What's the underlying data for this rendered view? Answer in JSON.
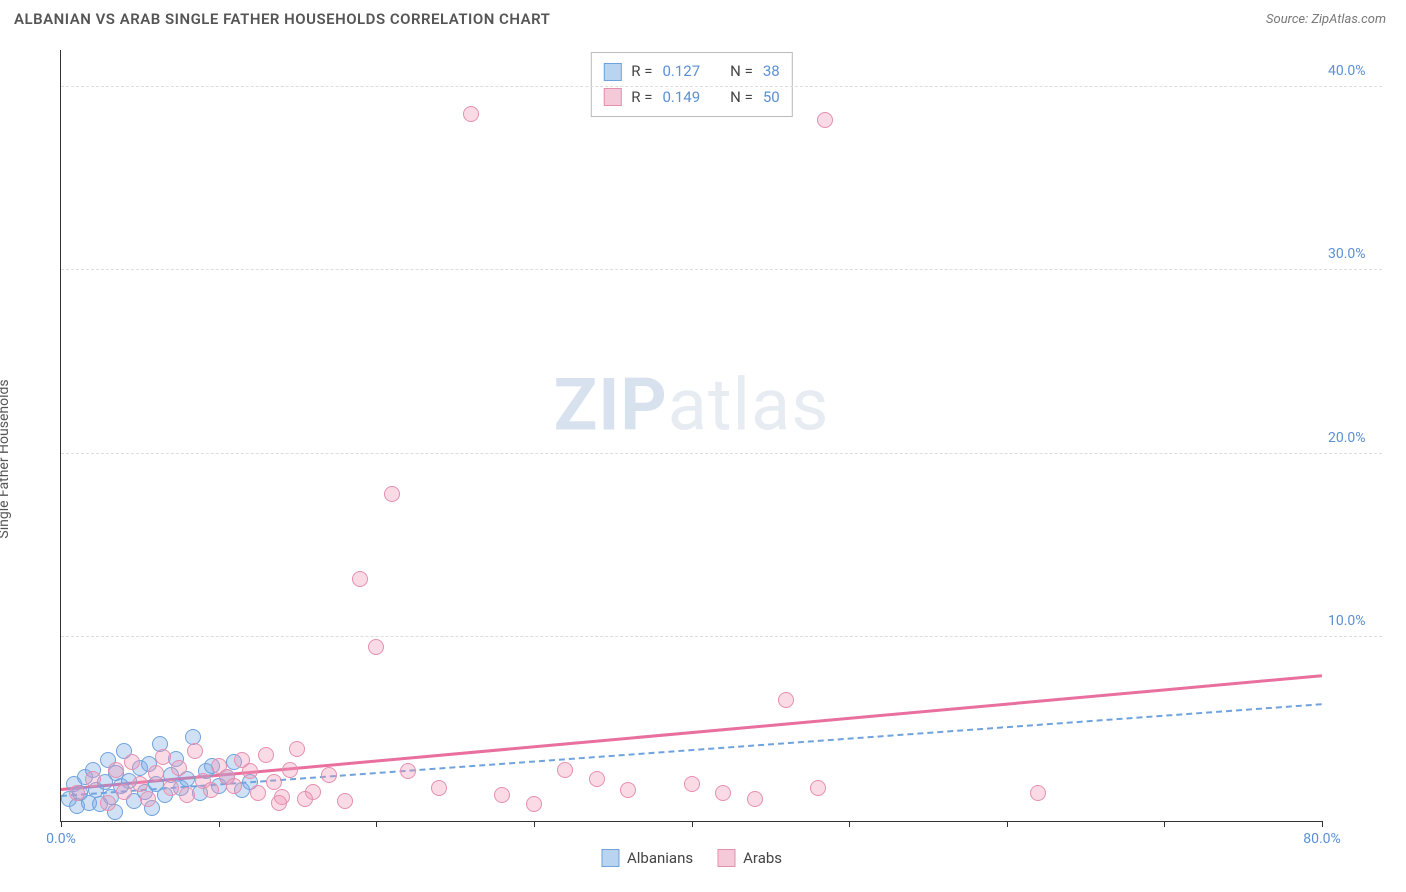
{
  "header": {
    "title": "ALBANIAN VS ARAB SINGLE FATHER HOUSEHOLDS CORRELATION CHART",
    "source_label": "Source:",
    "source_value": "ZipAtlas.com"
  },
  "ylabel": "Single Father Households",
  "watermark": {
    "bold": "ZIP",
    "rest": "atlas"
  },
  "chart": {
    "type": "scatter",
    "xlim": [
      0,
      80
    ],
    "ylim": [
      0,
      42
    ],
    "x_ticks": [
      0,
      10,
      20,
      30,
      40,
      50,
      60,
      70,
      80
    ],
    "x_tick_labels": {
      "0": "0.0%",
      "80": "80.0%"
    },
    "y_ticks": [
      10,
      20,
      30,
      40
    ],
    "y_tick_labels": {
      "10": "10.0%",
      "20": "20.0%",
      "30": "30.0%",
      "40": "40.0%"
    },
    "grid_color": "#dddddd",
    "background_color": "#ffffff",
    "axis_color": "#333333",
    "tick_label_color": "#5b8fd6",
    "marker_radius": 8,
    "marker_border_width": 1.5,
    "series": [
      {
        "name": "Albanians",
        "fill": "rgba(120,170,230,0.35)",
        "stroke": "#6fa3dd",
        "swatch_fill": "#b9d4f0",
        "swatch_border": "#6fa3dd",
        "trend": {
          "style": "dashed",
          "color": "#6fa3dd",
          "y_at_x0": 1.4,
          "y_at_xmax": 6.4
        },
        "R": "0.127",
        "N": "38",
        "points": [
          [
            0.5,
            1.2
          ],
          [
            0.8,
            2.0
          ],
          [
            1.0,
            0.8
          ],
          [
            1.2,
            1.5
          ],
          [
            1.5,
            2.4
          ],
          [
            1.8,
            1.0
          ],
          [
            2.0,
            2.8
          ],
          [
            2.2,
            1.7
          ],
          [
            2.5,
            0.9
          ],
          [
            2.8,
            2.1
          ],
          [
            3.0,
            3.3
          ],
          [
            3.2,
            1.3
          ],
          [
            3.5,
            2.6
          ],
          [
            3.8,
            1.9
          ],
          [
            4.0,
            3.8
          ],
          [
            4.3,
            2.2
          ],
          [
            4.6,
            1.1
          ],
          [
            5.0,
            2.9
          ],
          [
            5.3,
            1.6
          ],
          [
            5.6,
            3.1
          ],
          [
            6.0,
            2.0
          ],
          [
            6.3,
            4.2
          ],
          [
            6.6,
            1.4
          ],
          [
            7.0,
            2.5
          ],
          [
            7.3,
            3.4
          ],
          [
            7.6,
            1.8
          ],
          [
            8.0,
            2.3
          ],
          [
            8.4,
            4.6
          ],
          [
            8.8,
            1.5
          ],
          [
            9.2,
            2.7
          ],
          [
            9.6,
            3.0
          ],
          [
            10.0,
            1.9
          ],
          [
            10.5,
            2.4
          ],
          [
            11.0,
            3.2
          ],
          [
            11.5,
            1.7
          ],
          [
            12.0,
            2.1
          ],
          [
            3.4,
            0.5
          ],
          [
            5.8,
            0.7
          ]
        ]
      },
      {
        "name": "Arabs",
        "fill": "rgba(240,150,180,0.35)",
        "stroke": "#e58fb0",
        "swatch_fill": "#f6c9d8",
        "swatch_border": "#e58fb0",
        "trend": {
          "style": "solid",
          "color": "#e86f9e",
          "y_at_x0": 1.8,
          "y_at_xmax": 8.0
        },
        "R": "0.149",
        "N": "50",
        "points": [
          [
            1.0,
            1.5
          ],
          [
            2.0,
            2.3
          ],
          [
            3.0,
            1.0
          ],
          [
            3.5,
            2.8
          ],
          [
            4.0,
            1.6
          ],
          [
            4.5,
            3.2
          ],
          [
            5.0,
            2.0
          ],
          [
            5.5,
            1.2
          ],
          [
            6.0,
            2.6
          ],
          [
            6.5,
            3.5
          ],
          [
            7.0,
            1.8
          ],
          [
            7.5,
            2.9
          ],
          [
            8.0,
            1.4
          ],
          [
            8.5,
            3.8
          ],
          [
            9.0,
            2.2
          ],
          [
            9.5,
            1.7
          ],
          [
            10.0,
            3.0
          ],
          [
            10.5,
            2.4
          ],
          [
            11.0,
            1.9
          ],
          [
            11.5,
            3.3
          ],
          [
            12.0,
            2.7
          ],
          [
            12.5,
            1.5
          ],
          [
            13.0,
            3.6
          ],
          [
            13.5,
            2.1
          ],
          [
            14.0,
            1.3
          ],
          [
            14.5,
            2.8
          ],
          [
            15.0,
            3.9
          ],
          [
            16.0,
            1.6
          ],
          [
            17.0,
            2.5
          ],
          [
            18.0,
            1.1
          ],
          [
            19.0,
            13.2
          ],
          [
            20.0,
            9.5
          ],
          [
            21.0,
            17.8
          ],
          [
            22.0,
            2.7
          ],
          [
            24.0,
            1.8
          ],
          [
            26.0,
            38.5
          ],
          [
            28.0,
            1.4
          ],
          [
            30.0,
            0.9
          ],
          [
            32.0,
            2.8
          ],
          [
            34.0,
            2.3
          ],
          [
            36.0,
            1.7
          ],
          [
            40.0,
            2.0
          ],
          [
            42.0,
            1.5
          ],
          [
            44.0,
            1.2
          ],
          [
            46.0,
            6.6
          ],
          [
            48.0,
            1.8
          ],
          [
            62.0,
            1.5
          ],
          [
            48.5,
            38.2
          ],
          [
            13.8,
            1.0
          ],
          [
            15.5,
            1.2
          ]
        ]
      }
    ]
  },
  "legend_top": {
    "r_label": "R =",
    "n_label": "N ="
  },
  "legend_bottom": {
    "items": [
      "Albanians",
      "Arabs"
    ]
  }
}
